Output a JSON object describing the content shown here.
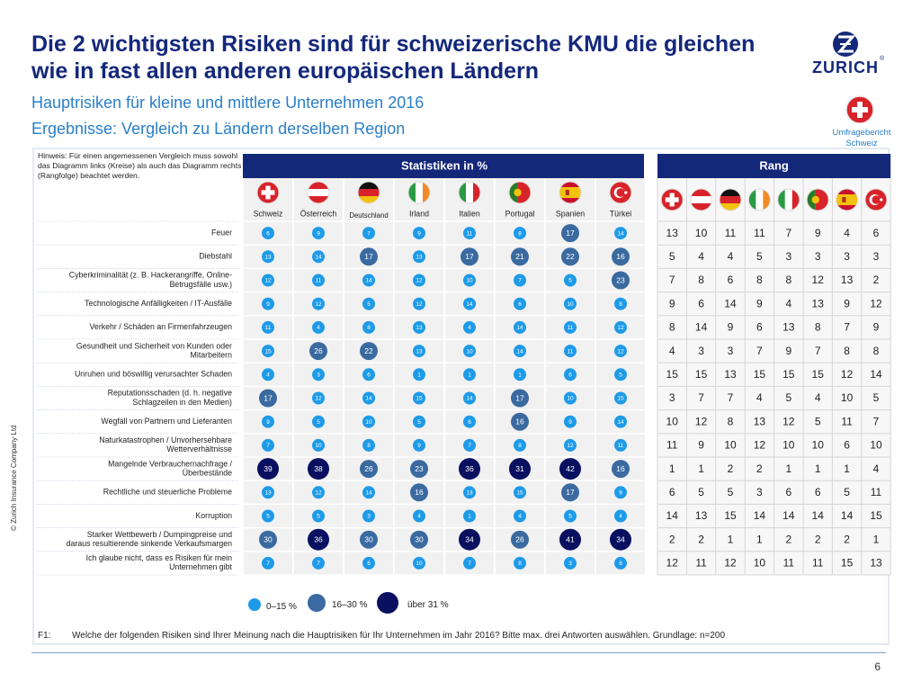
{
  "title": "Die 2 wichtigsten Risiken sind für schweizerische KMU die gleichen wie in fast allen anderen europäischen Ländern",
  "subtitle1": "Hauptrisiken für kleine und mittlere Unternehmen 2016",
  "subtitle2": "Ergebnisse: Vergleich zu Ländern derselben Region",
  "brand": "ZURICH",
  "brand_mark": "®",
  "badge_label": "Umfragebericht Schweiz",
  "copyright": "© Zurich Insurance Company Ltd",
  "page_number": "6",
  "hint": "Hinweis: Für einen angemessenen Vergleich muss sowohl das Diagramm links (Kreise) als auch das Diagramm rechts (Rangfolge) beachtet werden.",
  "footnote_q": "F1:",
  "footnote_text": "Welche der folgenden Risiken sind Ihrer Meinung nach die Hauptrisiken für Ihr Unternehmen im Jahr 2016? Bitte max. drei Antworten auswählen. Grundlage: n=200",
  "colors": {
    "light": "#1e9be8",
    "mid": "#3a6aa0",
    "dark": "#0a1060",
    "header": "#14287a",
    "title": "#14287a",
    "subtitle": "#2a7fc9"
  },
  "chart_data": {
    "type": "table",
    "left_header": "Statistiken in %",
    "right_header": "Rang",
    "countries": [
      "Schweiz",
      "Österreich",
      "Deutschland",
      "Irland",
      "Italien",
      "Portugal",
      "Spanien",
      "Türkei"
    ],
    "risks": [
      "Feuer",
      "Diebstahl",
      "Cyberkriminalität (z. B. Hackerangriffe, Online-Betrugsfälle usw.)",
      "Technologische Anfälligkeiten / IT-Ausfälle",
      "Verkehr / Schäden an Firmenfahrzeugen",
      "Gesundheit und Sicherheit von Kunden oder Mitarbeitern",
      "Unruhen und böswillig verursachter Schaden",
      "Reputationsschaden (d. h. negative Schlagzeilen in den Medien)",
      "Wegfall von Partnern und Lieferanten",
      "Naturkatastrophen / Unvorhersehbare Wetterverhältnisse",
      "Mangelnde Verbrauchernachfrage / Überbestände",
      "Rechtliche und steuerliche Probleme",
      "Korruption",
      "Starker Wettbewerb / Dumpingpreise und daraus resultierende sinkende Verkaufsmargen",
      "Ich glaube nicht, dass es Risiken für mein Unternehmen gibt"
    ],
    "percentages": [
      [
        6,
        9,
        7,
        9,
        11,
        8,
        17,
        14
      ],
      [
        13,
        14,
        17,
        13,
        17,
        21,
        22,
        16
      ],
      [
        12,
        11,
        14,
        12,
        10,
        7,
        5,
        23
      ],
      [
        9,
        12,
        5,
        12,
        14,
        6,
        10,
        8
      ],
      [
        11,
        4,
        8,
        13,
        4,
        14,
        11,
        12
      ],
      [
        15,
        26,
        22,
        13,
        10,
        14,
        11,
        12
      ],
      [
        4,
        3,
        6,
        1,
        1,
        1,
        6,
        5
      ],
      [
        17,
        12,
        14,
        15,
        14,
        17,
        10,
        15
      ],
      [
        9,
        5,
        10,
        5,
        6,
        16,
        9,
        14
      ],
      [
        7,
        10,
        8,
        9,
        7,
        8,
        12,
        11
      ],
      [
        39,
        38,
        26,
        23,
        36,
        31,
        42,
        16
      ],
      [
        13,
        12,
        14,
        16,
        13,
        15,
        17,
        9
      ],
      [
        5,
        5,
        3,
        4,
        1,
        4,
        5,
        4
      ],
      [
        30,
        36,
        30,
        30,
        34,
        26,
        41,
        34
      ],
      [
        7,
        7,
        6,
        10,
        7,
        8,
        3,
        6
      ]
    ],
    "ranks": [
      [
        13,
        10,
        11,
        11,
        7,
        9,
        4,
        6
      ],
      [
        5,
        4,
        4,
        5,
        3,
        3,
        3,
        3
      ],
      [
        7,
        8,
        6,
        8,
        8,
        12,
        13,
        2
      ],
      [
        9,
        6,
        14,
        9,
        4,
        13,
        9,
        12
      ],
      [
        8,
        14,
        9,
        6,
        13,
        8,
        7,
        9
      ],
      [
        4,
        3,
        3,
        7,
        9,
        7,
        8,
        8
      ],
      [
        15,
        15,
        13,
        15,
        15,
        15,
        12,
        14
      ],
      [
        3,
        7,
        7,
        4,
        5,
        4,
        10,
        5
      ],
      [
        10,
        12,
        8,
        13,
        12,
        5,
        11,
        7
      ],
      [
        11,
        9,
        10,
        12,
        10,
        10,
        6,
        10
      ],
      [
        1,
        1,
        2,
        2,
        1,
        1,
        1,
        4
      ],
      [
        6,
        5,
        5,
        3,
        6,
        6,
        5,
        11
      ],
      [
        14,
        13,
        15,
        14,
        14,
        14,
        14,
        15
      ],
      [
        2,
        2,
        1,
        1,
        2,
        2,
        2,
        1
      ],
      [
        12,
        11,
        12,
        10,
        11,
        11,
        15,
        13
      ]
    ],
    "legend": [
      {
        "label": "0–15 %",
        "min": 0,
        "max": 15
      },
      {
        "label": "16–30 %",
        "min": 16,
        "max": 30
      },
      {
        "label": "über 31 %",
        "min": 31,
        "max": 100
      }
    ]
  }
}
